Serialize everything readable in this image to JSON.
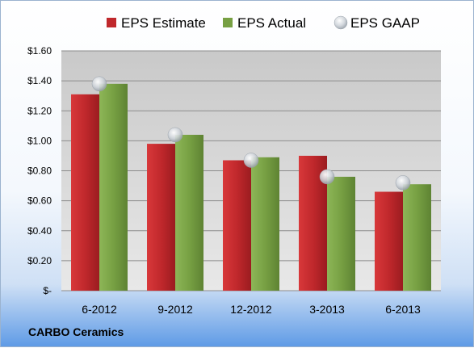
{
  "company": "CARBO Ceramics",
  "chart_data": {
    "type": "bar",
    "categories": [
      "6-2012",
      "9-2012",
      "12-2012",
      "3-2013",
      "6-2013"
    ],
    "series": [
      {
        "name": "EPS Estimate",
        "kind": "bar",
        "color": "#c0282c",
        "values": [
          1.31,
          0.98,
          0.87,
          0.9,
          0.66
        ]
      },
      {
        "name": "EPS Actual",
        "kind": "bar",
        "color": "#77a043",
        "values": [
          1.38,
          1.04,
          0.89,
          0.76,
          0.71
        ]
      },
      {
        "name": "EPS GAAP",
        "kind": "marker",
        "color": "#c8cdd3",
        "values": [
          1.38,
          1.04,
          0.87,
          0.76,
          0.72
        ]
      }
    ],
    "ylim": [
      0,
      1.6
    ],
    "yticks": [
      0,
      0.2,
      0.4,
      0.6,
      0.8,
      1.0,
      1.2,
      1.4,
      1.6
    ],
    "ytick_labels": [
      "$-",
      "$0.20",
      "$0.40",
      "$0.60",
      "$0.80",
      "$1.00",
      "$1.20",
      "$1.40",
      "$1.60"
    ],
    "grid": true,
    "legend": "top"
  }
}
